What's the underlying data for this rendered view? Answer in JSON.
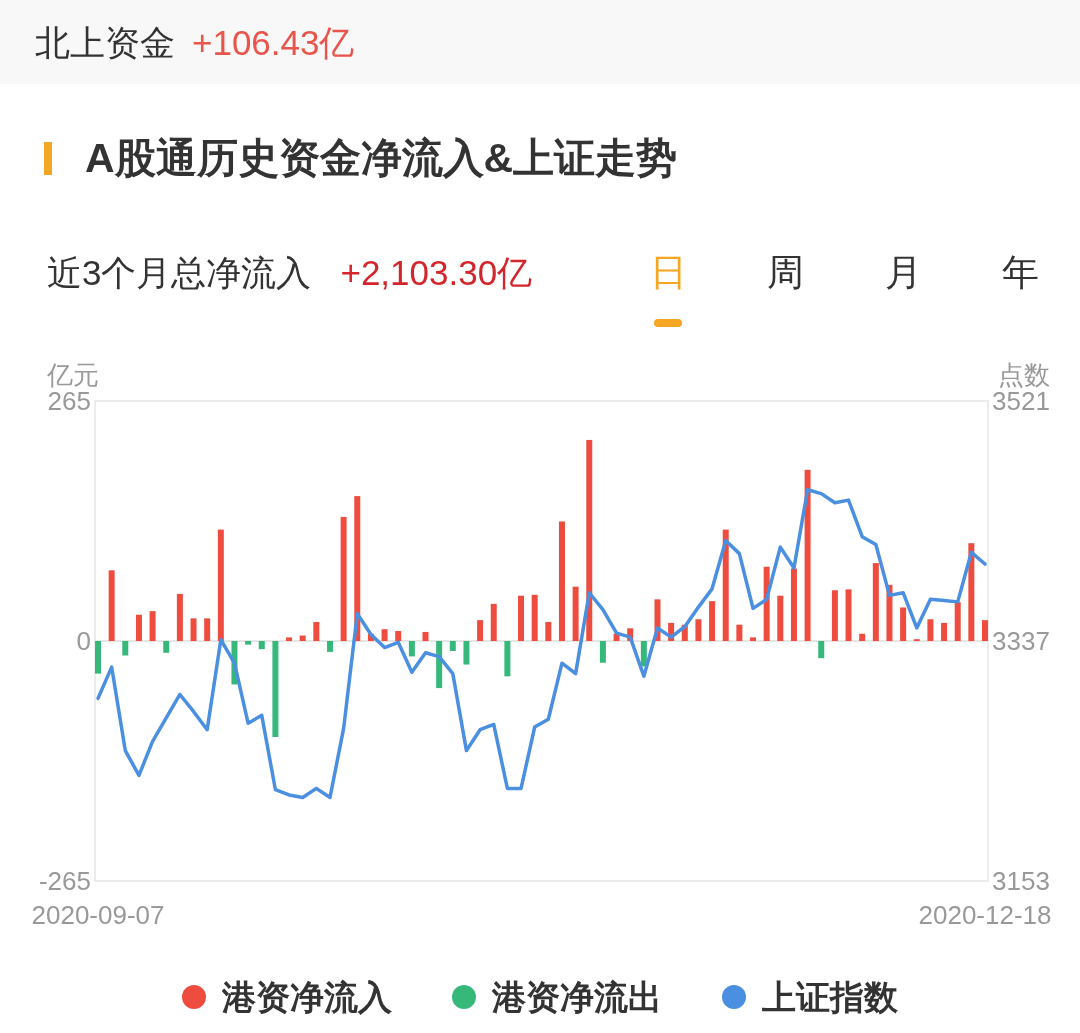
{
  "chart_data": {
    "type": "bar",
    "title": "A股通历史资金净流入&上证走势",
    "ylabel": "亿元",
    "y2label": "点数",
    "annotations": [
      "北上资金",
      "+106.43亿",
      "近3个月总净流入",
      "+2,103.30亿",
      "日",
      "周",
      "月",
      "年"
    ],
    "categories": [
      "2020-09-07",
      null,
      null,
      null,
      null,
      null,
      null,
      null,
      null,
      null,
      null,
      null,
      null,
      null,
      null,
      null,
      null,
      null,
      null,
      null,
      null,
      null,
      null,
      null,
      null,
      null,
      null,
      null,
      null,
      null,
      null,
      null,
      null,
      null,
      null,
      null,
      null,
      null,
      null,
      null,
      null,
      null,
      null,
      null,
      null,
      null,
      null,
      null,
      null,
      null,
      null,
      null,
      null,
      null,
      null,
      null,
      null,
      null,
      null,
      null,
      null,
      null,
      null,
      null,
      null,
      "2020-12-18"
    ],
    "series": [
      {
        "name": "港资净流入",
        "color": "#ee4c3f",
        "values": [
          null,
          78,
          null,
          29,
          33,
          null,
          52,
          25,
          25,
          123,
          null,
          null,
          null,
          null,
          4,
          6,
          21,
          null,
          137,
          160,
          8,
          13,
          11,
          null,
          10,
          null,
          null,
          null,
          23,
          41,
          null,
          50,
          51,
          21,
          132,
          60,
          222,
          null,
          8,
          14,
          null,
          46,
          20,
          18,
          24,
          44,
          123,
          18,
          4,
          82,
          50,
          80,
          189,
          null,
          56,
          57,
          8,
          86,
          62,
          37,
          2,
          24,
          20,
          43,
          108,
          23
        ]
      },
      {
        "name": "港资净流出",
        "color": "#37b87b",
        "values": [
          -36,
          null,
          -16,
          null,
          null,
          -13,
          null,
          null,
          null,
          null,
          -48,
          -4,
          -9,
          -106,
          null,
          null,
          null,
          -12,
          null,
          null,
          null,
          null,
          null,
          -17,
          null,
          -52,
          -11,
          -26,
          null,
          null,
          -39,
          null,
          null,
          null,
          null,
          null,
          null,
          -24,
          null,
          null,
          -28,
          null,
          null,
          null,
          null,
          null,
          null,
          null,
          null,
          null,
          null,
          null,
          null,
          -19,
          null,
          null,
          null,
          null,
          null,
          null,
          null,
          null,
          null,
          null,
          null,
          null
        ]
      },
      {
        "name": "上证指数",
        "type": "line",
        "axis": "y2",
        "color": "#4a8fe0",
        "values": [
          3293,
          3317,
          3253,
          3234,
          3260,
          3278,
          3296,
          3283,
          3269,
          3338,
          3320,
          3274,
          3280,
          3223,
          3219,
          3217,
          3224,
          3217,
          3270,
          3358,
          3342,
          3332,
          3336,
          3313,
          3328,
          3325,
          3312,
          3253,
          3269,
          3273,
          3224,
          3224,
          3271,
          3277,
          3320,
          3312,
          3374,
          3361,
          3343,
          3340,
          3310,
          3347,
          3340,
          3348,
          3363,
          3377,
          3414,
          3404,
          3362,
          3369,
          3409,
          3393,
          3453,
          3450,
          3443,
          3445,
          3417,
          3411,
          3372,
          3374,
          3347,
          3369,
          3368,
          3367,
          3405,
          3396
        ]
      }
    ],
    "stacked": true,
    "ylim": [
      -265,
      265
    ],
    "yticks": [
      -265,
      0,
      265
    ],
    "y2lim": [
      3153,
      3521
    ],
    "y2ticks": [
      3153,
      3337,
      3521
    ],
    "legend": "bottom"
  }
}
